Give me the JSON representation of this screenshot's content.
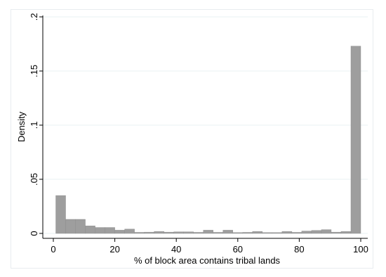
{
  "chart_data": {
    "type": "bar",
    "subtype": "histogram",
    "xlabel": "% of block area contains tribal lands",
    "ylabel": "Density",
    "xlim": [
      0,
      100
    ],
    "ylim": [
      0,
      0.2
    ],
    "xticks": [
      {
        "value": 0,
        "label": "0"
      },
      {
        "value": 20,
        "label": "20"
      },
      {
        "value": 40,
        "label": "40"
      },
      {
        "value": 60,
        "label": "60"
      },
      {
        "value": 80,
        "label": "80"
      },
      {
        "value": 100,
        "label": "100"
      }
    ],
    "yticks": [
      {
        "value": 0,
        "label": "0"
      },
      {
        "value": 0.05,
        "label": ".05"
      },
      {
        "value": 0.1,
        "label": ".1"
      },
      {
        "value": 0.15,
        "label": ".15"
      },
      {
        "value": 0.2,
        "label": ".2"
      }
    ],
    "grid": true,
    "bar_color": "#9e9e9e",
    "bins": [
      {
        "x0": 0.8,
        "x1": 4.0,
        "value": 0.035
      },
      {
        "x0": 4.0,
        "x1": 7.2,
        "value": 0.013
      },
      {
        "x0": 7.2,
        "x1": 10.4,
        "value": 0.013
      },
      {
        "x0": 10.4,
        "x1": 13.6,
        "value": 0.007
      },
      {
        "x0": 13.6,
        "x1": 16.8,
        "value": 0.0055
      },
      {
        "x0": 16.8,
        "x1": 20.0,
        "value": 0.0055
      },
      {
        "x0": 20.0,
        "x1": 23.2,
        "value": 0.003
      },
      {
        "x0": 23.2,
        "x1": 26.4,
        "value": 0.004
      },
      {
        "x0": 26.4,
        "x1": 29.6,
        "value": 0.001
      },
      {
        "x0": 29.6,
        "x1": 32.8,
        "value": 0.0012
      },
      {
        "x0": 32.8,
        "x1": 36.0,
        "value": 0.0018
      },
      {
        "x0": 36.0,
        "x1": 39.2,
        "value": 0.0012
      },
      {
        "x0": 39.2,
        "x1": 42.4,
        "value": 0.0015
      },
      {
        "x0": 42.4,
        "x1": 45.6,
        "value": 0.0015
      },
      {
        "x0": 45.6,
        "x1": 48.8,
        "value": 0.001
      },
      {
        "x0": 48.8,
        "x1": 52.0,
        "value": 0.003
      },
      {
        "x0": 52.0,
        "x1": 55.2,
        "value": 0.001
      },
      {
        "x0": 55.2,
        "x1": 58.4,
        "value": 0.003
      },
      {
        "x0": 58.4,
        "x1": 61.6,
        "value": 0.0008
      },
      {
        "x0": 61.6,
        "x1": 64.8,
        "value": 0.001
      },
      {
        "x0": 64.8,
        "x1": 68.0,
        "value": 0.0018
      },
      {
        "x0": 68.0,
        "x1": 71.2,
        "value": 0.0008
      },
      {
        "x0": 71.2,
        "x1": 74.4,
        "value": 0.0008
      },
      {
        "x0": 74.4,
        "x1": 77.6,
        "value": 0.0018
      },
      {
        "x0": 77.6,
        "x1": 80.8,
        "value": 0.001
      },
      {
        "x0": 80.8,
        "x1": 84.0,
        "value": 0.0022
      },
      {
        "x0": 84.0,
        "x1": 87.2,
        "value": 0.0028
      },
      {
        "x0": 87.2,
        "x1": 90.4,
        "value": 0.0035
      },
      {
        "x0": 90.4,
        "x1": 93.6,
        "value": 0.0012
      },
      {
        "x0": 93.6,
        "x1": 96.8,
        "value": 0.0018
      },
      {
        "x0": 96.8,
        "x1": 100.0,
        "value": 0.173
      }
    ]
  }
}
